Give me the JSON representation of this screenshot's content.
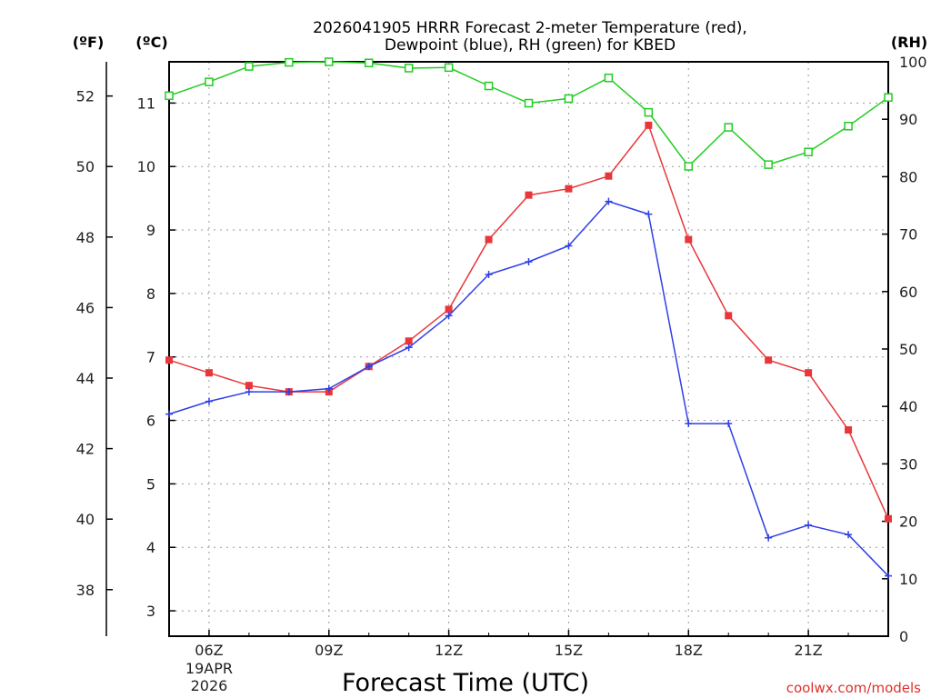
{
  "chart_data": {
    "type": "line",
    "title_line1": "2026041905 HRRR Forecast 2-meter Temperature (red),",
    "title_line2": "Dewpoint (blue), RH (green) for KBED",
    "xlabel": "Forecast Time (UTC)",
    "credit": "coolwx.com/models",
    "axis_units": {
      "f": "(ºF)",
      "c": "(ºC)",
      "rh": "(RH)"
    },
    "x_hours": [
      5,
      6,
      7,
      8,
      9,
      10,
      11,
      12,
      13,
      14,
      15,
      16,
      17,
      18,
      19,
      20,
      21,
      22,
      23
    ],
    "x_ticks": [
      "06Z",
      "09Z",
      "12Z",
      "15Z",
      "18Z",
      "21Z"
    ],
    "x_date_lines": [
      "19APR",
      "2026"
    ],
    "c_ticks": [
      "3",
      "4",
      "5",
      "6",
      "7",
      "8",
      "9",
      "10",
      "11"
    ],
    "f_ticks": [
      "38",
      "40",
      "42",
      "44",
      "46",
      "48",
      "50",
      "52"
    ],
    "rh_ticks": [
      "0",
      "10",
      "20",
      "30",
      "40",
      "50",
      "60",
      "70",
      "80",
      "90",
      "100"
    ],
    "ylim_c": [
      2.6,
      11.65
    ],
    "ylim_rh": [
      0,
      100
    ],
    "series": [
      {
        "name": "Temperature",
        "color": "#e8363a",
        "marker": "square-filled",
        "axis": "c",
        "values": [
          6.95,
          6.75,
          6.55,
          6.45,
          6.45,
          6.85,
          7.25,
          7.75,
          8.85,
          9.55,
          9.65,
          9.85,
          10.65,
          8.85,
          7.65,
          6.95,
          6.75,
          5.85,
          4.45
        ]
      },
      {
        "name": "Dewpoint",
        "color": "#2f3fe6",
        "marker": "plus",
        "axis": "c",
        "values": [
          6.1,
          6.3,
          6.45,
          6.45,
          6.5,
          6.85,
          7.15,
          7.65,
          8.3,
          8.5,
          8.75,
          9.45,
          9.25,
          5.95,
          5.95,
          4.15,
          4.35,
          4.2,
          3.55
        ]
      },
      {
        "name": "RH",
        "color": "#22cc22",
        "marker": "square-open",
        "axis": "rh",
        "values": [
          94.1,
          96.5,
          99.2,
          99.9,
          100.0,
          99.8,
          98.9,
          99.0,
          95.8,
          92.8,
          93.6,
          97.2,
          91.2,
          81.8,
          88.6,
          82.1,
          84.3,
          88.8,
          93.8
        ]
      }
    ]
  }
}
